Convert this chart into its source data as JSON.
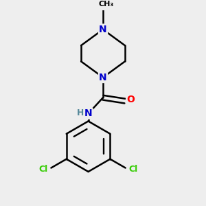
{
  "background_color": "#eeeeee",
  "bond_color": "#000000",
  "bond_width": 1.8,
  "atom_colors": {
    "N": "#0000cc",
    "O": "#ff0000",
    "Cl": "#33cc00",
    "H": "#558899",
    "C": "#000000"
  },
  "font_size": 10,
  "fig_width": 3.0,
  "fig_height": 3.0,
  "dpi": 100,
  "xlim": [
    -1.6,
    1.6
  ],
  "ylim": [
    -2.3,
    2.3
  ]
}
